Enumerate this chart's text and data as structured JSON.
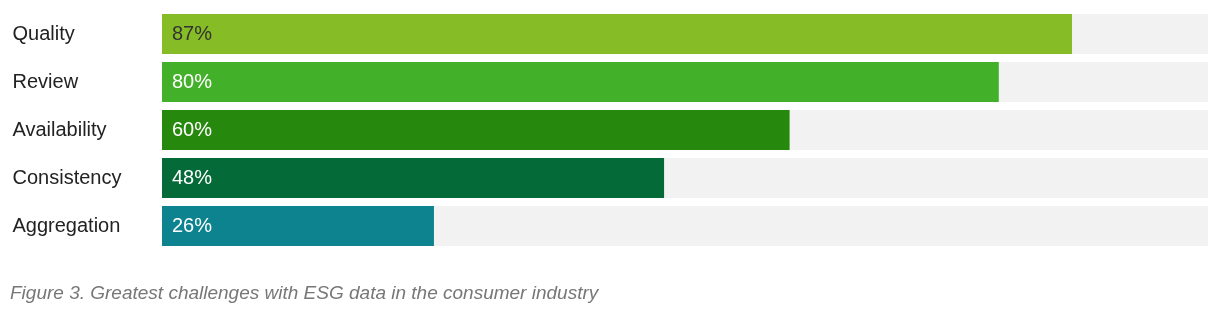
{
  "chart_data": {
    "type": "bar",
    "orientation": "horizontal",
    "categories": [
      "Quality",
      "Review",
      "Availability",
      "Consistency",
      "Aggregation"
    ],
    "values": [
      87,
      80,
      60,
      48,
      26
    ],
    "colors": [
      "#86bc25",
      "#43b02a",
      "#26890d",
      "#046a38",
      "#0d8390"
    ],
    "value_labels": [
      "87%",
      "80%",
      "60%",
      "48%",
      "26%"
    ],
    "xlim": [
      0,
      100
    ],
    "tick_labels": "y",
    "annotations": [
      "Figure 3. Greatest challenges with ESG data in the consumer industry"
    ]
  }
}
